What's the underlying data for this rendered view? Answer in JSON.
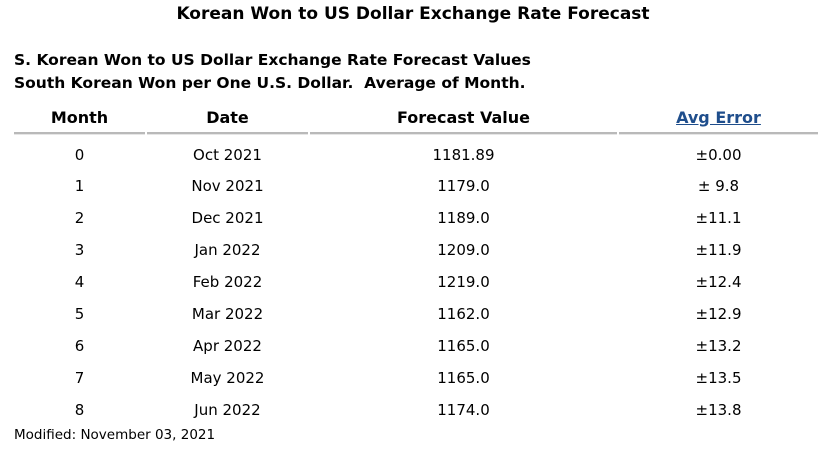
{
  "header": {
    "title": "Korean Won to US Dollar Exchange Rate Forecast",
    "subtitle_lines": [
      "S. Korean Won to US Dollar Exchange Rate Forecast Values",
      "South Korean Won per One U.S. Dollar.  Average of Month."
    ]
  },
  "table": {
    "columns": [
      "Month",
      "Date",
      "Forecast Value",
      "Avg Error"
    ],
    "rows": [
      [
        "0",
        "Oct 2021",
        "1181.89",
        "±0.00"
      ],
      [
        "1",
        "Nov 2021",
        "1179.0",
        "± 9.8"
      ],
      [
        "2",
        "Dec 2021",
        "1189.0",
        "±11.1"
      ],
      [
        "3",
        "Jan 2022",
        "1209.0",
        "±11.9"
      ],
      [
        "4",
        "Feb 2022",
        "1219.0",
        "±12.4"
      ],
      [
        "5",
        "Mar 2022",
        "1162.0",
        "±12.9"
      ],
      [
        "6",
        "Apr 2022",
        "1165.0",
        "±13.2"
      ],
      [
        "7",
        "May 2022",
        "1165.0",
        "±13.5"
      ],
      [
        "8",
        "Jun 2022",
        "1174.0",
        "±13.8"
      ]
    ]
  },
  "footer": {
    "modified": "Modified: November 03, 2021"
  }
}
